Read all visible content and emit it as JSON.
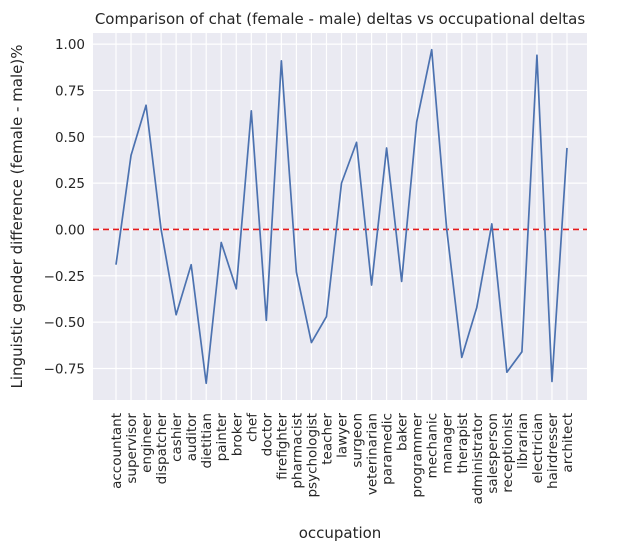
{
  "chart_data": {
    "type": "line",
    "title": "Comparison of chat (female - male) deltas vs occupational deltas",
    "xlabel": "occupation",
    "ylabel": "Linguistic gender difference (female - male)%",
    "categories": [
      "accountant",
      "supervisor",
      "engineer",
      "dispatcher",
      "cashier",
      "auditor",
      "dietitian",
      "painter",
      "broker",
      "chef",
      "doctor",
      "firefighter",
      "pharmacist",
      "psychologist",
      "teacher",
      "lawyer",
      "surgeon",
      "veterinarian",
      "paramedic",
      "baker",
      "programmer",
      "mechanic",
      "manager",
      "therapist",
      "administrator",
      "salesperson",
      "receptionist",
      "librarian",
      "electrician",
      "hairdresser",
      "architect"
    ],
    "series": [
      {
        "values": [
          -0.19,
          0.4,
          0.67,
          0.0,
          -0.46,
          -0.19,
          -0.83,
          -0.07,
          -0.32,
          0.64,
          -0.49,
          0.91,
          -0.23,
          -0.61,
          -0.47,
          0.25,
          0.47,
          -0.3,
          0.44,
          -0.28,
          0.58,
          0.97,
          0.0,
          -0.69,
          -0.42,
          0.03,
          -0.77,
          -0.66,
          0.94,
          -0.82,
          0.44
        ],
        "color": "#4c72b0"
      }
    ],
    "reference_line": {
      "y": 0.0,
      "color": "#e41a1c",
      "style": "dashed"
    },
    "ylim": [
      -0.92,
      1.06
    ],
    "yticks": [
      -0.75,
      -0.5,
      -0.25,
      0.0,
      0.25,
      0.5,
      0.75,
      1.0
    ],
    "ytick_labels": [
      "−0.75",
      "−0.50",
      "−0.25",
      "0.00",
      "0.25",
      "0.50",
      "0.75",
      "1.00"
    ],
    "grid": true,
    "background": "#eaeaf2",
    "grid_color": "#ffffff"
  }
}
